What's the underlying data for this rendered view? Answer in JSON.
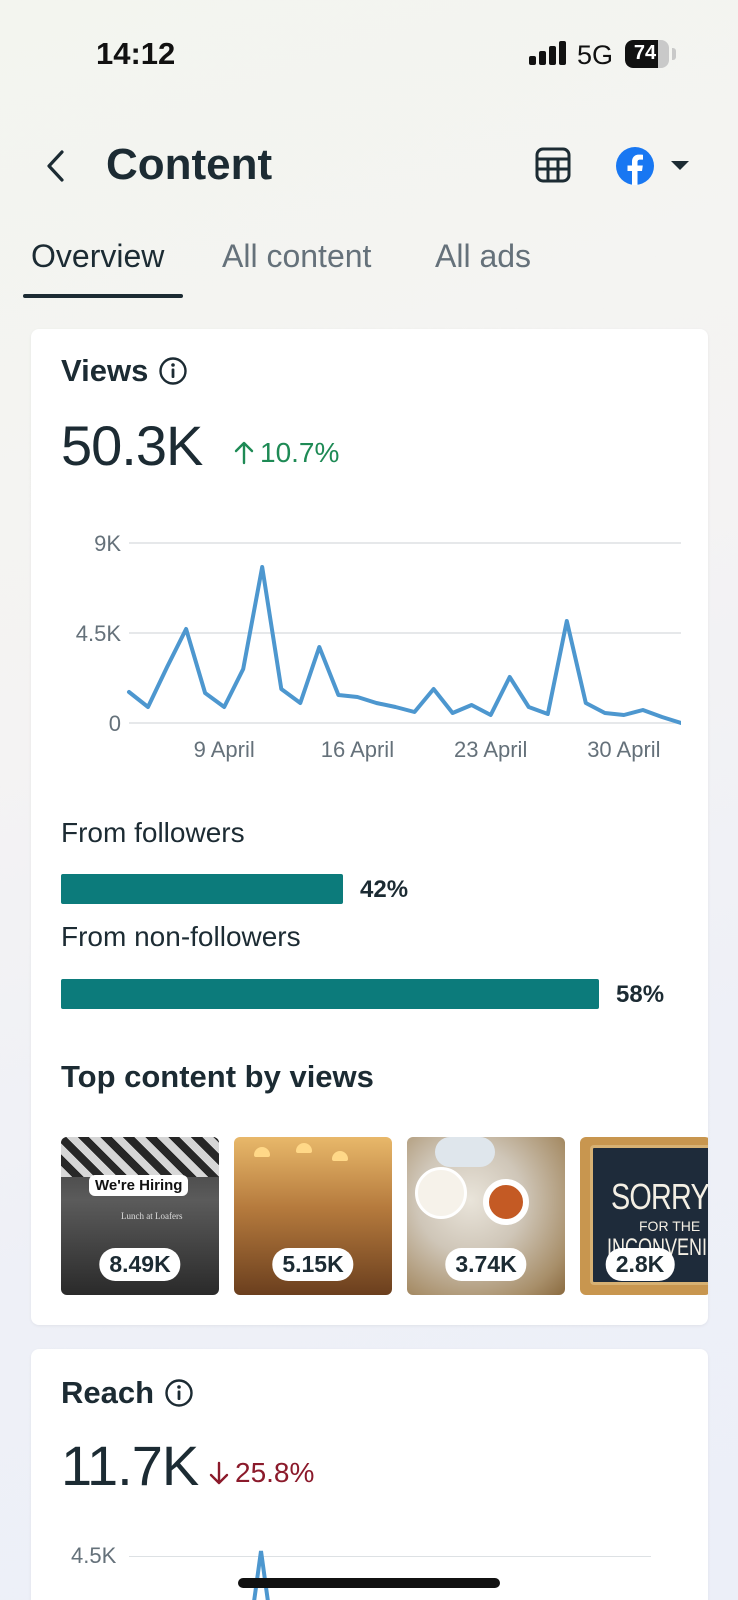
{
  "status": {
    "time": "14:12",
    "network": "5G",
    "battery": "74",
    "battery_level": 0.74
  },
  "header": {
    "title": "Content",
    "back_icon": "chevron-left-icon",
    "table_icon": "table-icon",
    "account_icon": "facebook-icon",
    "dropdown_icon": "caret-down-icon"
  },
  "tabs": [
    {
      "label": "Overview",
      "active": true
    },
    {
      "label": "All content",
      "active": false
    },
    {
      "label": "All ads",
      "active": false
    }
  ],
  "views": {
    "label": "Views",
    "value": "50.3K",
    "delta": "10.7%",
    "delta_direction": "up",
    "from_followers_label": "From followers",
    "from_followers_pct": "42%",
    "from_followers_value": 0.42,
    "from_non_followers_label": "From non-followers",
    "from_non_followers_pct": "58%",
    "from_non_followers_value": 0.58
  },
  "chart_data": {
    "type": "line",
    "x": [
      "4 April",
      "5 April",
      "6 April",
      "7 April",
      "8 April",
      "9 April",
      "10 April",
      "11 April",
      "12 April",
      "13 April",
      "14 April",
      "15 April",
      "16 April",
      "17 April",
      "18 April",
      "19 April",
      "20 April",
      "21 April",
      "22 April",
      "23 April",
      "24 April",
      "25 April",
      "26 April",
      "27 April",
      "28 April",
      "29 April",
      "30 April",
      "1 May",
      "2 May",
      "3 May"
    ],
    "series": [
      {
        "values": [
          1550,
          800,
          2800,
          4700,
          1500,
          800,
          2700,
          7800,
          1700,
          1000,
          3800,
          1400,
          1300,
          1000,
          800,
          550,
          1700,
          500,
          900,
          400,
          2300,
          800,
          450,
          5100,
          1000,
          500,
          400,
          650,
          300,
          0
        ]
      }
    ],
    "yticks": [
      "9K",
      "4.5K",
      "0"
    ],
    "xticks": [
      "9 April",
      "16 April",
      "23 April",
      "30 April"
    ],
    "ylim": [
      0,
      9000
    ],
    "grid": true,
    "line_color": "#4d97cf"
  },
  "top_content": {
    "title": "Top content by views",
    "items": [
      {
        "views": "8.49K",
        "overlay_text": "We're Hiring",
        "shop_text": "Lunch at Loafers"
      },
      {
        "views": "5.15K"
      },
      {
        "views": "3.74K"
      },
      {
        "views": "2.8K",
        "sign_line1": "SORRY",
        "sign_line2": "FOR THE",
        "sign_line3": "INCONVENIENCE"
      }
    ]
  },
  "reach": {
    "label": "Reach",
    "value": "11.7K",
    "delta": "25.8%",
    "delta_direction": "down",
    "first_ytick": "4.5K"
  }
}
